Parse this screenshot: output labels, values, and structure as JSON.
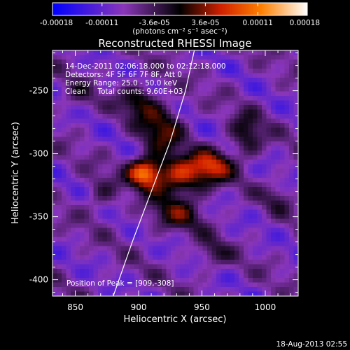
{
  "chart_data": {
    "type": "heatmap",
    "title": "Reconstructed RHESSI Image",
    "xlabel": "Heliocentric X (arcsec)",
    "ylabel": "Heliocentric Y (arcsec)",
    "xlim": [
      832,
      1026
    ],
    "ylim": [
      -413,
      -218
    ],
    "x_ticks": [
      850,
      900,
      950,
      1000
    ],
    "x_tick_labels": [
      "850",
      "900",
      "950",
      "1000"
    ],
    "y_ticks": [
      -250,
      -300,
      -350,
      -400
    ],
    "y_tick_labels": [
      "-250",
      "-300",
      "-350",
      "-400"
    ],
    "colorbar": {
      "range": [
        -0.00018,
        0.00018
      ],
      "tick_values": [
        -0.00018,
        -0.00011,
        -3.6e-05,
        3.6e-05,
        0.00011,
        0.00018
      ],
      "tick_labels": [
        "-0.00018",
        "-0.00011",
        "-3.6e-05",
        "3.6e-05",
        "0.00011",
        "0.00018"
      ],
      "units_label": "(photons cm⁻² s⁻¹ asec⁻²)"
    },
    "annotations": [
      "14-Dec-2011 02:06:18.000 to 02:12:18.000",
      "Detectors: 4F 5F 6F 7F 8F, Att 0",
      "Energy Range: 25.0 - 50.0 keV",
      "Clean     Total counts: 9.60E+03"
    ],
    "peak_label": "Position of Peak = [909,-308]",
    "peak_position": [
      909,
      -308
    ],
    "limb_curve": [
      [
        880,
        -413
      ],
      [
        895,
        -370
      ],
      [
        910,
        -330
      ],
      [
        925,
        -290
      ],
      [
        937,
        -250
      ],
      [
        944,
        -218
      ]
    ],
    "sources": [
      {
        "x": 905,
        "y": -315,
        "sx": 9,
        "sy": 8,
        "amp": 0.00018
      },
      {
        "x": 932,
        "y": -318,
        "sx": 14,
        "sy": 11,
        "amp": 0.000135
      },
      {
        "x": 958,
        "y": -310,
        "sx": 11,
        "sy": 9,
        "amp": 0.00012
      },
      {
        "x": 918,
        "y": -280,
        "sx": 12,
        "sy": 14,
        "amp": 9e-05
      },
      {
        "x": 900,
        "y": -258,
        "sx": 10,
        "sy": 9,
        "amp": 8e-05
      },
      {
        "x": 985,
        "y": -286,
        "sx": 9,
        "sy": 12,
        "amp": 8e-05
      },
      {
        "x": 930,
        "y": -348,
        "sx": 16,
        "sy": 10,
        "amp": 7e-05
      },
      {
        "x": 958,
        "y": -380,
        "sx": 9,
        "sy": 8,
        "amp": 5e-05
      },
      {
        "x": 870,
        "y": -333,
        "sx": 9,
        "sy": 11,
        "amp": 4.5e-05
      },
      {
        "x": 852,
        "y": -255,
        "sx": 8,
        "sy": 8,
        "amp": 4e-05
      },
      {
        "x": 1010,
        "y": -335,
        "sx": 8,
        "sy": 8,
        "amp": 4e-05
      }
    ]
  },
  "footer_date": "18-Aug-2013 02:55",
  "colors": {
    "background": "#000000",
    "foreground": "#ffffff",
    "colormap": [
      "#0000ff",
      "#8a36b8",
      "#000000",
      "#d02000",
      "#ff8000",
      "#ffffff"
    ]
  }
}
